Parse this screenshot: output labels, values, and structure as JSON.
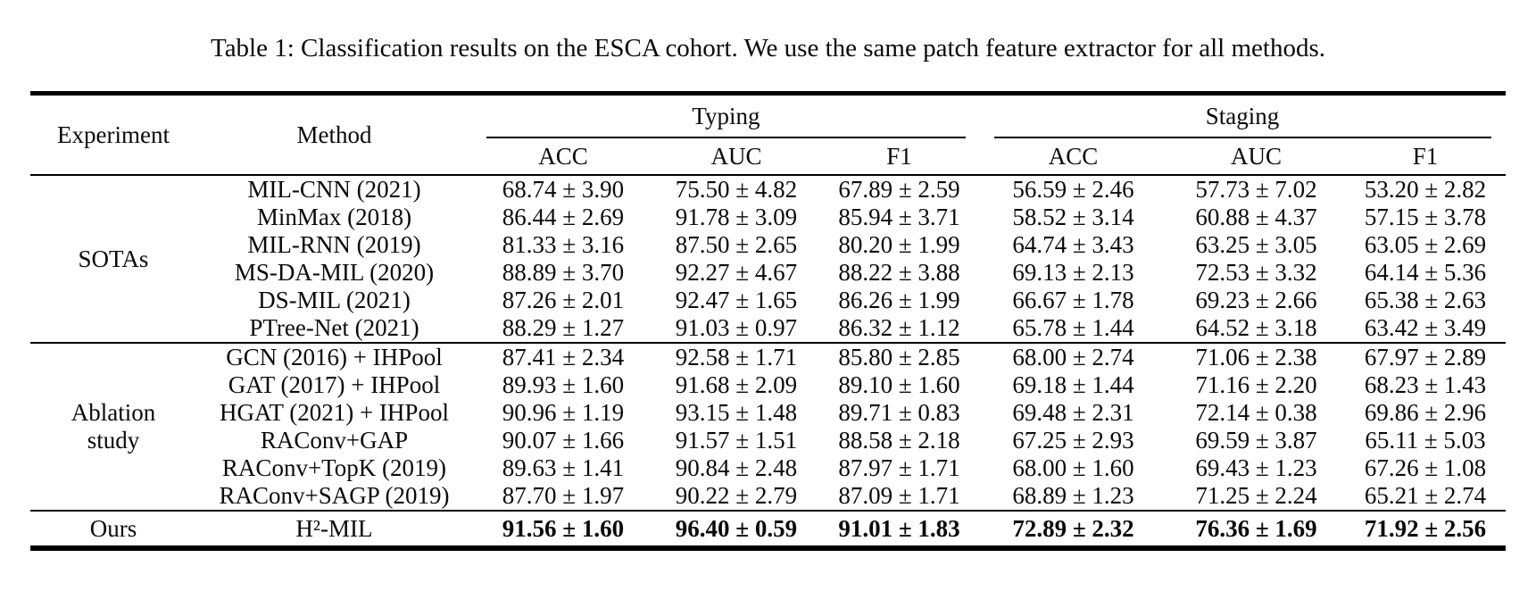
{
  "caption": "Table 1: Classification results on the ESCA cohort. We use the same patch feature extractor for all methods.",
  "table": {
    "col_headers": {
      "experiment": "Experiment",
      "method": "Method",
      "group1": "Typing",
      "group2": "Staging",
      "sub": [
        "ACC",
        "AUC",
        "F1",
        "ACC",
        "AUC",
        "F1"
      ]
    },
    "groups": [
      {
        "experiment": "SOTAs",
        "rows": [
          {
            "method": "MIL-CNN (2021)",
            "values": [
              "68.74 ± 3.90",
              "75.50 ± 4.82",
              "67.89 ± 2.59",
              "56.59 ± 2.46",
              "57.73 ± 7.02",
              "53.20 ± 2.82"
            ]
          },
          {
            "method": "MinMax (2018)",
            "values": [
              "86.44 ± 2.69",
              "91.78 ± 3.09",
              "85.94 ± 3.71",
              "58.52 ± 3.14",
              "60.88 ± 4.37",
              "57.15 ± 3.78"
            ]
          },
          {
            "method": "MIL-RNN (2019)",
            "values": [
              "81.33 ± 3.16",
              "87.50 ± 2.65",
              "80.20 ± 1.99",
              "64.74 ± 3.43",
              "63.25 ± 3.05",
              "63.05 ± 2.69"
            ]
          },
          {
            "method": "MS-DA-MIL (2020)",
            "values": [
              "88.89 ± 3.70",
              "92.27 ± 4.67",
              "88.22 ± 3.88",
              "69.13 ± 2.13",
              "72.53 ± 3.32",
              "64.14 ± 5.36"
            ]
          },
          {
            "method": "DS-MIL (2021)",
            "values": [
              "87.26 ± 2.01",
              "92.47 ± 1.65",
              "86.26 ± 1.99",
              "66.67 ± 1.78",
              "69.23 ± 2.66",
              "65.38 ± 2.63"
            ]
          },
          {
            "method": "PTree-Net (2021)",
            "values": [
              "88.29 ± 1.27",
              "91.03 ± 0.97",
              "86.32 ± 1.12",
              "65.78 ± 1.44",
              "64.52 ± 3.18",
              "63.42 ± 3.49"
            ]
          }
        ]
      },
      {
        "experiment": "Ablation study",
        "rows": [
          {
            "method": "GCN (2016) + IHPool",
            "values": [
              "87.41 ± 2.34",
              "92.58 ± 1.71",
              "85.80 ± 2.85",
              "68.00 ± 2.74",
              "71.06 ± 2.38",
              "67.97 ± 2.89"
            ]
          },
          {
            "method": "GAT (2017) + IHPool",
            "values": [
              "89.93 ± 1.60",
              "91.68 ± 2.09",
              "89.10 ± 1.60",
              "69.18 ± 1.44",
              "71.16 ± 2.20",
              "68.23 ± 1.43"
            ]
          },
          {
            "method": "HGAT (2021) + IHPool",
            "values": [
              "90.96 ± 1.19",
              "93.15 ± 1.48",
              "89.71 ± 0.83",
              "69.48 ± 2.31",
              "72.14 ± 0.38",
              "69.86 ± 2.96"
            ]
          },
          {
            "method": "RAConv+GAP",
            "values": [
              "90.07 ± 1.66",
              "91.57 ± 1.51",
              "88.58 ± 2.18",
              "67.25 ± 2.93",
              "69.59 ± 3.87",
              "65.11 ± 5.03"
            ]
          },
          {
            "method": "RAConv+TopK (2019)",
            "values": [
              "89.63 ± 1.41",
              "90.84 ± 2.48",
              "87.97 ± 1.71",
              "68.00 ± 1.60",
              "69.43 ± 1.23",
              "67.26 ± 1.08"
            ]
          },
          {
            "method": "RAConv+SAGP (2019)",
            "values": [
              "87.70 ± 1.97",
              "90.22 ± 2.79",
              "87.09 ± 1.71",
              "68.89 ± 1.23",
              "71.25 ± 2.24",
              "65.21 ± 2.74"
            ]
          }
        ]
      },
      {
        "experiment": "Ours",
        "rows": [
          {
            "method": "H²-MIL",
            "values": [
              "91.56 ± 1.60",
              "96.40 ± 0.59",
              "91.01 ± 1.83",
              "72.89 ± 2.32",
              "76.36 ± 1.69",
              "71.92 ± 2.56"
            ]
          }
        ]
      }
    ]
  }
}
